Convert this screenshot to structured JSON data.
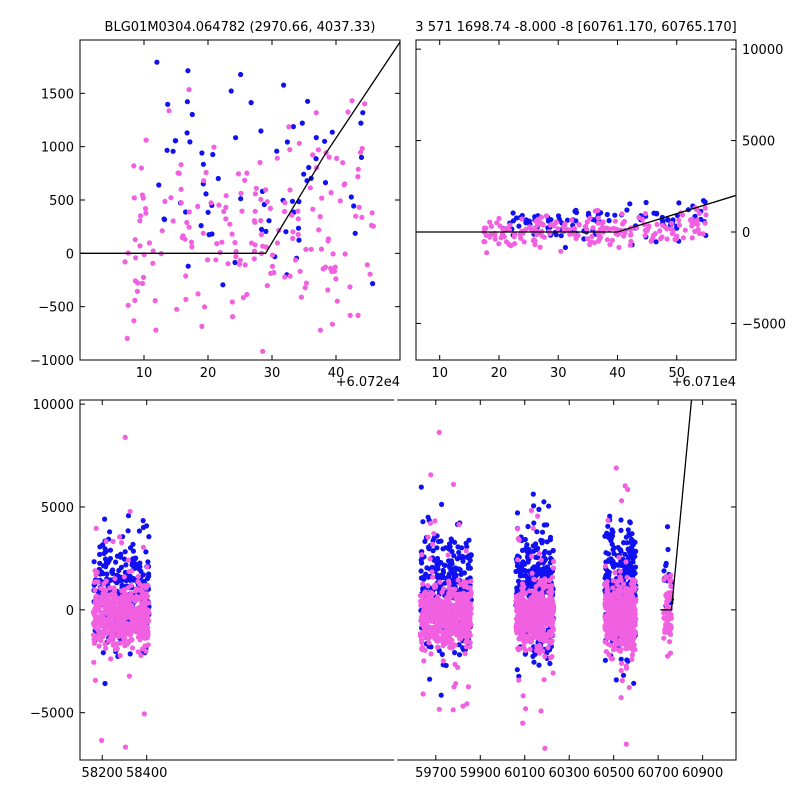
{
  "colors": {
    "series_blue": "#1010f0",
    "series_magenta": "#f060e0",
    "model_line": "#000000",
    "background": "#ffffff"
  },
  "chart_data": [
    {
      "type": "scatter",
      "title": "BLG01M0304.064782 (2970.66, 4037.33)",
      "xlim": [
        0,
        50
      ],
      "ylim": [
        -1000,
        2000
      ],
      "x_ticks": [
        10,
        20,
        30,
        40
      ],
      "x_tick_labels": [
        "10",
        "20",
        "30",
        "40"
      ],
      "x_offset_label": "+6.072e4",
      "y_ticks": [
        -1000,
        -500,
        0,
        500,
        1000,
        1500
      ],
      "y_tick_labels": [
        "−1000",
        "−500",
        "0",
        "500",
        "1000",
        "1500"
      ],
      "model_line": {
        "x": [
          0,
          29,
          38,
          50
        ],
        "y": [
          0,
          0,
          900,
          1980
        ]
      },
      "series": [
        {
          "name": "blue",
          "seed": 11,
          "count": 75,
          "x_range": [
            12,
            46
          ],
          "base_y": 700,
          "spread": 550,
          "trend": 25
        },
        {
          "name": "magenta",
          "seed": 23,
          "count": 190,
          "x_range": [
            7,
            46
          ],
          "base_y": 150,
          "spread": 450,
          "trend": 30
        }
      ]
    },
    {
      "type": "scatter",
      "title": "3 571 1698.74 -8.000 -8 [60761.170, 60765.170]",
      "xlim": [
        6,
        60
      ],
      "ylim": [
        -7000,
        10500
      ],
      "x_ticks": [
        10,
        20,
        30,
        40,
        50
      ],
      "x_tick_labels": [
        "10",
        "20",
        "30",
        "40",
        "50"
      ],
      "x_offset_label": "+6.071e4",
      "y_ticks": [
        -5000,
        0,
        5000,
        10000
      ],
      "y_tick_labels": [
        "−5000",
        "0",
        "5000",
        "10000"
      ],
      "model_line": {
        "x": [
          6,
          40,
          60
        ],
        "y": [
          0,
          0,
          2000
        ]
      },
      "series": [
        {
          "name": "blue",
          "seed": 37,
          "count": 110,
          "x_range": [
            20,
            55
          ],
          "base_y": 400,
          "spread": 500,
          "trend": 30
        },
        {
          "name": "magenta",
          "seed": 41,
          "count": 190,
          "x_range": [
            17,
            55
          ],
          "base_y": 0,
          "spread": 450,
          "trend": 25
        }
      ]
    },
    {
      "type": "scatter",
      "title": "",
      "xlim": [
        58100,
        61050
      ],
      "ylim": [
        -7300,
        10200
      ],
      "x_ticks": [
        58200,
        58400,
        59700,
        59900,
        60100,
        60300,
        60500,
        60700,
        60900
      ],
      "x_tick_labels": [
        "58200",
        "58400",
        "59700",
        "59900",
        "60100",
        "60300",
        "60500",
        "60700",
        "60900"
      ],
      "y_ticks": [
        -5000,
        0,
        5000,
        10000
      ],
      "y_tick_labels": [
        "−5000",
        "0",
        "5000",
        "10000"
      ],
      "axis_break_x": 59520,
      "model_line": {
        "x": [
          60710,
          60760,
          60850
        ],
        "y": [
          0,
          0,
          10200
        ]
      },
      "seasons": [
        {
          "x_range": [
            58160,
            58410
          ],
          "count_blue": 260,
          "count_magenta": 520
        },
        {
          "x_range": [
            59630,
            59860
          ],
          "count_blue": 300,
          "count_magenta": 520
        },
        {
          "x_range": [
            60060,
            60230
          ],
          "count_blue": 320,
          "count_magenta": 520
        },
        {
          "x_range": [
            60460,
            60600
          ],
          "count_blue": 320,
          "count_magenta": 520
        },
        {
          "x_range": [
            60725,
            60760
          ],
          "count_blue": 20,
          "count_magenta": 60
        }
      ]
    }
  ]
}
